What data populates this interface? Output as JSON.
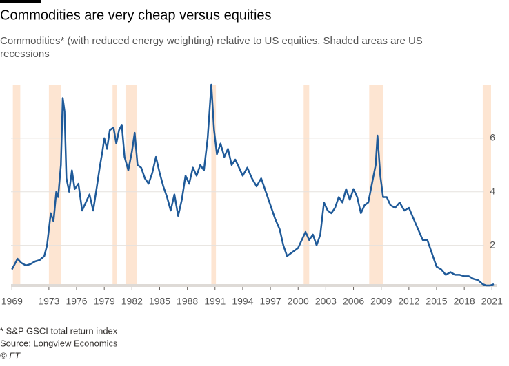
{
  "chart_data": {
    "type": "line",
    "title": "Commodities are very cheap versus equities",
    "subtitle": [
      "Commodities* (with reduced energy weighting) relative to US equities. Shaded areas are US",
      "recessions"
    ],
    "footnote": "* S&P GSCI total return index",
    "source": "Source: Longview Economics",
    "credit": "© FT",
    "xlim": [
      1968.9,
      2021.5
    ],
    "ylim": [
      0.5,
      8
    ],
    "xticks": [
      1969,
      1973,
      1976,
      1979,
      1982,
      1985,
      1988,
      1991,
      1994,
      1997,
      2000,
      2003,
      2006,
      2009,
      2012,
      2015,
      2018,
      2021
    ],
    "yticks": [
      2,
      4,
      6
    ],
    "grid": true,
    "recession_color": "#fde5d2",
    "recessions": [
      [
        1969.1,
        1969.9
      ],
      [
        1973.0,
        1974.3
      ],
      [
        1979.9,
        1980.4
      ],
      [
        1981.3,
        1982.5
      ],
      [
        1990.6,
        1991.1
      ],
      [
        2000.6,
        2001.2
      ],
      [
        2007.7,
        2009.2
      ],
      [
        2020.0,
        2020.9
      ]
    ],
    "series": [
      {
        "color": "#1f5a99",
        "x": [
          1969.0,
          1969.3,
          1969.6,
          1970.0,
          1970.5,
          1971.0,
          1971.5,
          1972.0,
          1972.5,
          1972.8,
          1973.2,
          1973.5,
          1973.8,
          1974.0,
          1974.3,
          1974.5,
          1974.7,
          1974.9,
          1975.2,
          1975.5,
          1975.8,
          1976.2,
          1976.6,
          1977.0,
          1977.4,
          1977.8,
          1978.2,
          1978.5,
          1978.8,
          1979.0,
          1979.3,
          1979.6,
          1980.0,
          1980.3,
          1980.6,
          1980.9,
          1981.2,
          1981.6,
          1982.0,
          1982.3,
          1982.6,
          1983.0,
          1983.4,
          1983.8,
          1984.2,
          1984.6,
          1985.0,
          1985.4,
          1985.8,
          1986.2,
          1986.6,
          1987.0,
          1987.4,
          1987.8,
          1988.2,
          1988.6,
          1989.0,
          1989.4,
          1989.8,
          1990.2,
          1990.6,
          1990.9,
          1991.2,
          1991.6,
          1992.0,
          1992.4,
          1992.8,
          1993.2,
          1993.6,
          1994.0,
          1994.5,
          1995.0,
          1995.5,
          1996.0,
          1996.5,
          1997.0,
          1997.5,
          1998.0,
          1998.4,
          1998.8,
          1999.2,
          1999.6,
          2000.0,
          2000.4,
          2000.8,
          2001.2,
          2001.6,
          2002.0,
          2002.4,
          2002.8,
          2003.2,
          2003.6,
          2004.0,
          2004.4,
          2004.8,
          2005.2,
          2005.6,
          2006.0,
          2006.4,
          2006.8,
          2007.2,
          2007.6,
          2008.0,
          2008.4,
          2008.6,
          2008.9,
          2009.2,
          2009.6,
          2010.0,
          2010.5,
          2011.0,
          2011.5,
          2012.0,
          2012.5,
          2013.0,
          2013.5,
          2014.0,
          2014.5,
          2015.0,
          2015.5,
          2016.0,
          2016.5,
          2017.0,
          2017.5,
          2018.0,
          2018.5,
          2019.0,
          2019.5,
          2020.0,
          2020.4,
          2020.8,
          2021.2
        ],
        "values": [
          1.1,
          1.3,
          1.5,
          1.35,
          1.25,
          1.3,
          1.4,
          1.45,
          1.6,
          2.0,
          3.2,
          2.9,
          4.0,
          3.8,
          5.0,
          7.5,
          7.0,
          4.5,
          4.0,
          4.8,
          4.1,
          4.3,
          3.3,
          3.6,
          3.9,
          3.3,
          4.2,
          4.9,
          5.5,
          6.0,
          5.6,
          6.3,
          6.4,
          5.8,
          6.3,
          6.5,
          5.3,
          4.8,
          5.5,
          6.2,
          5.0,
          4.9,
          4.5,
          4.3,
          4.7,
          5.3,
          4.7,
          4.2,
          3.8,
          3.3,
          3.9,
          3.1,
          3.7,
          4.6,
          4.3,
          4.9,
          4.6,
          5.0,
          4.8,
          6.0,
          8.0,
          6.3,
          5.4,
          5.8,
          5.3,
          5.6,
          5.0,
          5.2,
          4.9,
          4.6,
          4.9,
          4.5,
          4.2,
          4.5,
          4.0,
          3.5,
          3.0,
          2.6,
          2.0,
          1.6,
          1.7,
          1.8,
          1.9,
          2.2,
          2.5,
          2.2,
          2.4,
          2.0,
          2.4,
          3.6,
          3.3,
          3.2,
          3.4,
          3.8,
          3.6,
          4.1,
          3.7,
          4.1,
          3.8,
          3.2,
          3.5,
          3.6,
          4.3,
          5.0,
          6.1,
          4.6,
          3.8,
          3.8,
          3.5,
          3.4,
          3.6,
          3.3,
          3.4,
          3.0,
          2.6,
          2.2,
          2.2,
          1.7,
          1.2,
          1.1,
          0.9,
          1.0,
          0.9,
          0.9,
          0.85,
          0.85,
          0.75,
          0.7,
          0.55,
          0.5,
          0.5,
          0.55
        ]
      }
    ]
  }
}
